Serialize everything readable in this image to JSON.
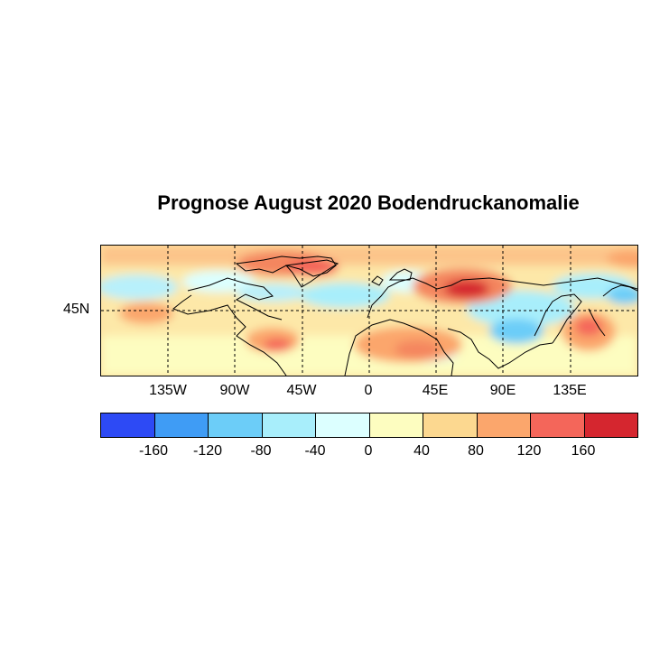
{
  "title": "Prognose August 2020 Bodendruckanomalie",
  "map": {
    "projection": "cylindrical-equidistant",
    "lon_range": [
      -180,
      180
    ],
    "lat_range": [
      0,
      90
    ],
    "lat_labels": [
      {
        "text": "45N",
        "lat": 45
      }
    ],
    "lon_labels": [
      {
        "text": "135W",
        "lon": -135
      },
      {
        "text": "90W",
        "lon": -90
      },
      {
        "text": "45W",
        "lon": -45
      },
      {
        "text": "0",
        "lon": 0
      },
      {
        "text": "45E",
        "lon": 45
      },
      {
        "text": "90E",
        "lon": 90
      },
      {
        "text": "135E",
        "lon": 135
      }
    ],
    "gridlines": "dashed",
    "anomaly_regions": [
      {
        "region": "Arctic band",
        "level": 100
      },
      {
        "region": "Greenland",
        "level": 120
      },
      {
        "region": "West Russia",
        "level": 160
      },
      {
        "region": "Sahara",
        "level": 110
      },
      {
        "region": "NW Pacific",
        "level": 120
      },
      {
        "region": "North Atlantic",
        "level": -50
      },
      {
        "region": "Central Asia",
        "level": -60
      },
      {
        "region": "East China",
        "level": -80
      },
      {
        "region": "Alaska Canada",
        "level": -40
      }
    ]
  },
  "colorbar": {
    "colors": [
      "#2d4af5",
      "#3f9cf5",
      "#6ccdf8",
      "#a8eefb",
      "#dcffff",
      "#fdfdc0",
      "#fcd890",
      "#fba66c",
      "#f4665a",
      "#d5262f"
    ],
    "tick_labels": [
      "-160",
      "-120",
      "-80",
      "-40",
      "0",
      "40",
      "80",
      "120",
      "160"
    ]
  }
}
